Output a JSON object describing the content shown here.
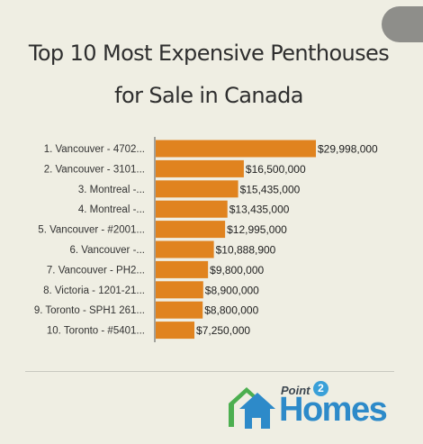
{
  "chart_data": {
    "type": "bar",
    "orientation": "horizontal",
    "title": "Top 10 Most Expensive Penthouses for Sale in Canada",
    "categories": [
      "1. Vancouver - 4702...",
      "2. Vancouver - 3101...",
      "3. Montreal -...",
      "4. Montreal -...",
      "5. Vancouver - #2001...",
      "6. Vancouver -...",
      "7. Vancouver - PH2...",
      "8. Victoria - 1201-21...",
      "9. Toronto - SPH1 261...",
      "10. Toronto - #5401..."
    ],
    "values": [
      29998000,
      16500000,
      15435000,
      13435000,
      12995000,
      10888900,
      9800000,
      8900000,
      8800000,
      7250000
    ],
    "value_labels": [
      "$29,998,000",
      "$16,500,000",
      "$15,435,000",
      "$13,435,000",
      "$12,995,000",
      "$10,888,900",
      "$9,800,000",
      "$8,900,000",
      "$8,800,000",
      "$7,250,000"
    ],
    "xlim": [
      0,
      29998000
    ],
    "bar_color": "#e0831f",
    "axis_color": "#555555",
    "grid": false,
    "legend": "none"
  },
  "logo": {
    "point_text": "Point",
    "two_text": "2",
    "homes_text": "Homes",
    "house_colors": [
      "#4caf50",
      "#2d8ac9"
    ]
  },
  "colors": {
    "background": "#efeee3",
    "title": "#2e2e2e",
    "corner_tab": "#8e8e8a"
  }
}
